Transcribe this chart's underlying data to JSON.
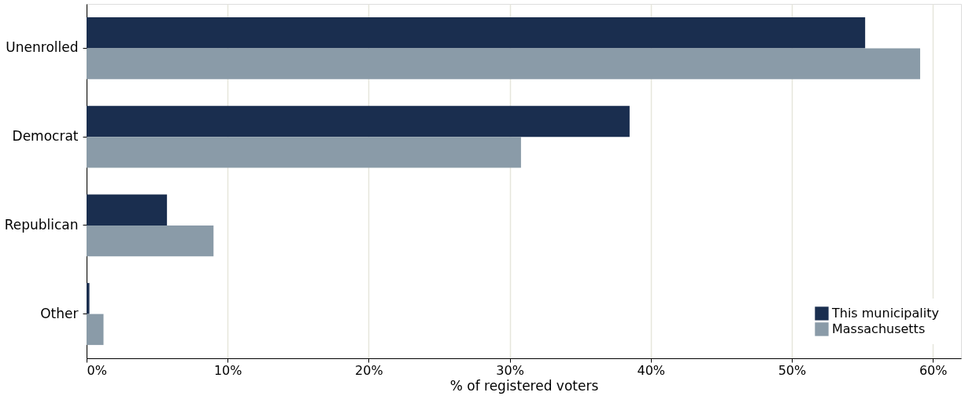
{
  "chart_data": {
    "type": "bar",
    "orientation": "horizontal",
    "xlabel": "% of registered voters",
    "categories": [
      "Unenrolled",
      "Democrat",
      "Republican",
      "Other"
    ],
    "series": [
      {
        "name": "This municipality",
        "color": "#1a2e4f",
        "values": [
          55.2,
          38.5,
          5.7,
          0.2
        ]
      },
      {
        "name": "Massachusetts",
        "color": "#8a9ba8",
        "values": [
          59.1,
          30.8,
          9.0,
          1.2
        ]
      }
    ],
    "xlim": [
      0,
      62
    ],
    "xticks": [
      {
        "value": 0,
        "label": "0%"
      },
      {
        "value": 10,
        "label": "10%"
      },
      {
        "value": 20,
        "label": "20%"
      },
      {
        "value": 30,
        "label": "30%"
      },
      {
        "value": 40,
        "label": "40%"
      },
      {
        "value": 50,
        "label": "50%"
      },
      {
        "value": 60,
        "label": "60%"
      }
    ],
    "grid": "x",
    "legend": "bottom right"
  }
}
